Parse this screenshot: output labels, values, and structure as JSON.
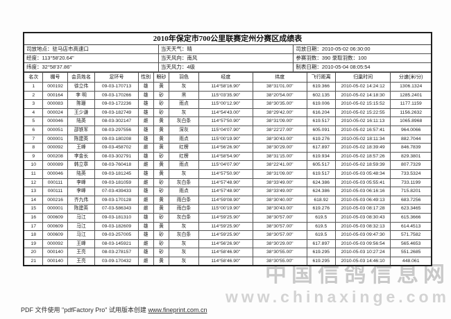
{
  "title": "2010年保定市700公里联赛定州分赛区成绩表",
  "info": {
    "rows": [
      [
        "司放地点：驻马店市高速口",
        "当天天气：晴",
        "司放日期：2010-05-02 06:30:00"
      ],
      [
        "经度：113°58'20.64\"",
        "当天风向：南风",
        "参赛羽数：390  录取羽数：100"
      ],
      [
        "纬度：32°58'37.86\"",
        "当天风力：4级",
        "制表日期：2010-05-04 08:05:54"
      ]
    ]
  },
  "table": {
    "headers": [
      "名次",
      "棚号",
      "会员姓名",
      "足环号",
      "性别",
      "眼砂",
      "羽色",
      "经度",
      "纬度",
      "飞行距离",
      "归巢时间",
      "分速(米/分)"
    ],
    "rows": [
      [
        "1",
        "000192",
        "徐立伟",
        "09-03-170713",
        "雄",
        "黄",
        "灰",
        "114°58'16.90\"",
        "38°31'01.00\"",
        "619.366",
        "2010-05-02 14:24:12",
        "1306.1324"
      ],
      [
        "2",
        "000164",
        "李 明",
        "09-03-170266",
        "雄",
        "砂",
        "黑",
        "115°03'35.90\"",
        "38°20'54.00\"",
        "602.135",
        "2010-05-02 14:18:30",
        "1285.2401"
      ],
      [
        "3",
        "000083",
        "陈珊",
        "09-03-172236",
        "雄",
        "砂",
        "雨点",
        "115°00'12.90\"",
        "38°30'35.00\"",
        "619.006",
        "2010-05-02 15:15:52",
        "1177.1159"
      ],
      [
        "4",
        "000024",
        "王少谦",
        "09-03-182749",
        "雄",
        "砂",
        "灰",
        "114°54'43.00\"",
        "38°29'42.00\"",
        "616.204",
        "2010-05-02 15:22:55",
        "1156.2632"
      ],
      [
        "5",
        "000046",
        "陆英",
        "08-03-302147",
        "雌",
        "黄",
        "灰白条",
        "114°57'50.90\"",
        "38°31'09.00\"",
        "619.517",
        "2010-05-02 16:11:13",
        "1065.8968"
      ],
      [
        "6",
        "000051",
        "邵铁军",
        "08-03-297556",
        "雄",
        "黄",
        "深灰",
        "115°04'07.90\"",
        "38°22'27.00\"",
        "605.091",
        "2010-05-02 16:57:41",
        "964.0066"
      ],
      [
        "7",
        "000001",
        "陈建英",
        "09-03-180208",
        "雄",
        "黄",
        "雨点",
        "115°00'19.90\"",
        "38°30'43.00\"",
        "619.276",
        "2010-05-02 18:11:34",
        "882.7044"
      ],
      [
        "8",
        "000092",
        "王峰",
        "09-03-458702",
        "雌",
        "黄",
        "红楞",
        "114°56'26.90\"",
        "38°30'29.00\"",
        "617.897",
        "2010-05-02 18:39:49",
        "846.7839"
      ],
      [
        "9",
        "000208",
        "李金长",
        "08-03-302791",
        "雄",
        "砂",
        "红楞",
        "114°58'54.90\"",
        "38°31'15.00\"",
        "619.934",
        "2010-05-02 18:57:26",
        "829.3801"
      ],
      [
        "10",
        "000089",
        "韩立章",
        "08-03-760418",
        "雌",
        "黄",
        "雨点",
        "115°04'07.90\"",
        "38°22'41.00\"",
        "605.517",
        "2010-05-02 18:59:39",
        "807.7329"
      ],
      [
        "11",
        "000046",
        "陆英",
        "09-03-181245",
        "雄",
        "黄",
        "灰",
        "114°57'50.90\"",
        "38°31'09.00\"",
        "619.517",
        "2010-05-03 05:48:34",
        "733.5324"
      ],
      [
        "12",
        "000111",
        "李峰",
        "09-03-181059",
        "雌",
        "砂",
        "灰白条",
        "114°57'48.90\"",
        "38°33'49.00\"",
        "624.386",
        "2010-05-03 05:55:41",
        "733.1199"
      ],
      [
        "13",
        "000111",
        "李峰",
        "07-03-439433",
        "雄",
        "砂",
        "雨点",
        "114°57'48.90\"",
        "38°33'49.00\"",
        "624.386",
        "2010-05-03 06:16:16",
        "715.8201"
      ],
      [
        "14",
        "000216",
        "齐九伟",
        "09-03-170128",
        "雌",
        "黄",
        "雨白条",
        "114°59'08.90\"",
        "38°30'40.00\"",
        "618.92",
        "2010-05-03 06:49:13",
        "683.7256"
      ],
      [
        "15",
        "000001",
        "陈建英",
        "07-03-586343",
        "雌",
        "黄",
        "雨白条",
        "115°00'19.90\"",
        "38°30'43.00\"",
        "619.276",
        "2010-05-03 08:17:28",
        "623.3465"
      ],
      [
        "16",
        "000609",
        "马江",
        "09-03-181310",
        "雄",
        "砂",
        "灰白条",
        "114°59'25.90\"",
        "38°30'57.00\"",
        "619.5",
        "2010-05-03 08:30:43",
        "615.3666"
      ],
      [
        "17",
        "000609",
        "马江",
        "09-03-182609",
        "雄",
        "黄",
        "灰",
        "114°59'25.90\"",
        "38°30'57.00\"",
        "619.5",
        "2010-05-03 08:32:13",
        "614.4513"
      ],
      [
        "18",
        "000609",
        "马江",
        "09-03-257005",
        "雄",
        "砂",
        "灰白条",
        "114°59'25.90\"",
        "38°30'57.00\"",
        "619.5",
        "2010-05-03 09:47:30",
        "571.7582"
      ],
      [
        "19",
        "000092",
        "王峰",
        "08-03-145921",
        "雌",
        "砂",
        "灰",
        "114°56'26.90\"",
        "38°30'29.00\"",
        "617.897",
        "2010-05-03 09:56:54",
        "565.4653"
      ],
      [
        "20",
        "000140",
        "王亮",
        "08-03-278157",
        "雄",
        "砂",
        "灰",
        "114°58'46.90\"",
        "38°30'55.00\"",
        "619.295",
        "2010-05-03 10:27:24",
        "551.2685"
      ],
      [
        "21",
        "000140",
        "王亮",
        "03-09-170432",
        "雌",
        "黄",
        "灰",
        "114°58'46.90\"",
        "38°30'55.00\"",
        "619.295",
        "2010-05-03 14:46:10",
        "448.061"
      ]
    ]
  },
  "footer": {
    "text": "PDF 文件使用 \"pdfFactory Pro\" 试用版本创建",
    "link": "www.fineprint.com.cn"
  },
  "watermark": {
    "line1": "中国信鸽信息网",
    "line2": "www.chinaxinge.com"
  }
}
